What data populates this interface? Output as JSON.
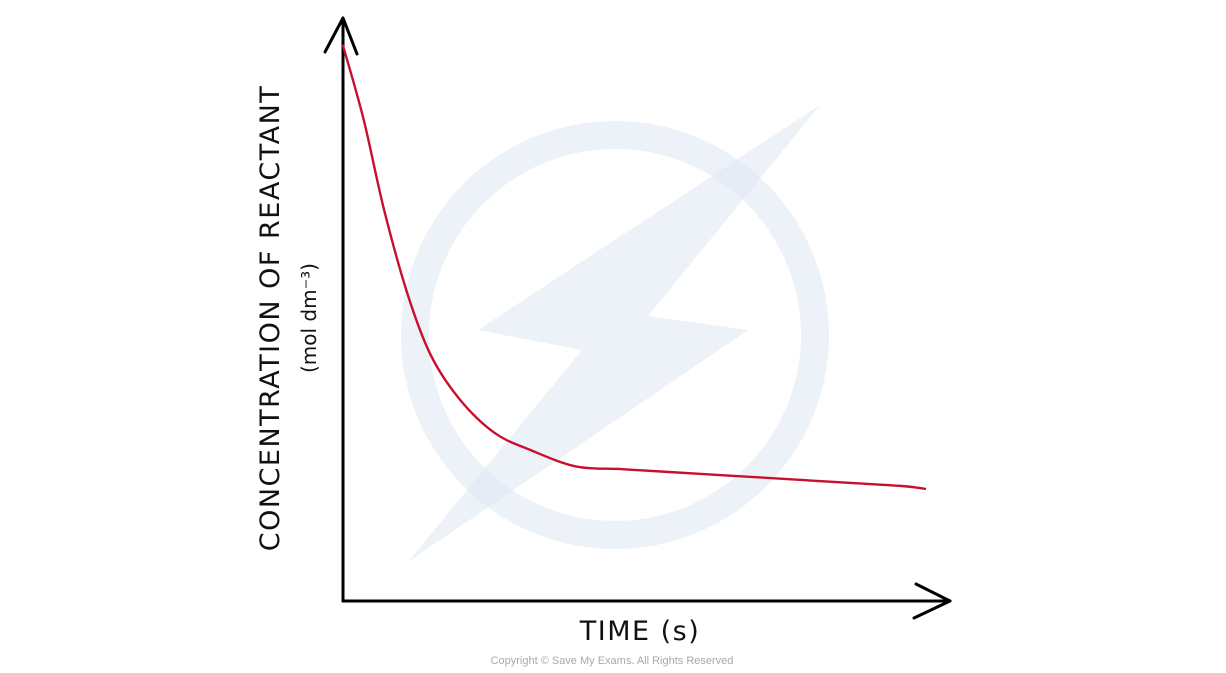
{
  "watermark": {
    "icon": "lightning-bolt-logo",
    "color": "#dfe8f3",
    "text": "Copyright © Save My Exams. All Rights Reserved"
  },
  "chart_data": {
    "type": "line",
    "title": "",
    "xlabel": "TIME (s)",
    "ylabel": "CONCENTRATION OF REACTANT",
    "ylabel_unit": "(mol dm⁻³)",
    "xlim": [
      0,
      10
    ],
    "ylim": [
      0,
      10
    ],
    "grid": false,
    "ticks": false,
    "series": [
      {
        "color": "#c8102e",
        "x": [
          0,
          0.35,
          0.7,
          1.1,
          1.5,
          2.0,
          2.6,
          3.2,
          4.0,
          4.8,
          5.6,
          6.4,
          7.2,
          8.0,
          8.8,
          9.6,
          10.0
        ],
        "y": [
          9.9,
          8.6,
          7.0,
          5.5,
          4.4,
          3.6,
          3.0,
          2.7,
          2.4,
          2.35,
          2.3,
          2.25,
          2.2,
          2.15,
          2.1,
          2.05,
          2.0
        ]
      }
    ]
  }
}
